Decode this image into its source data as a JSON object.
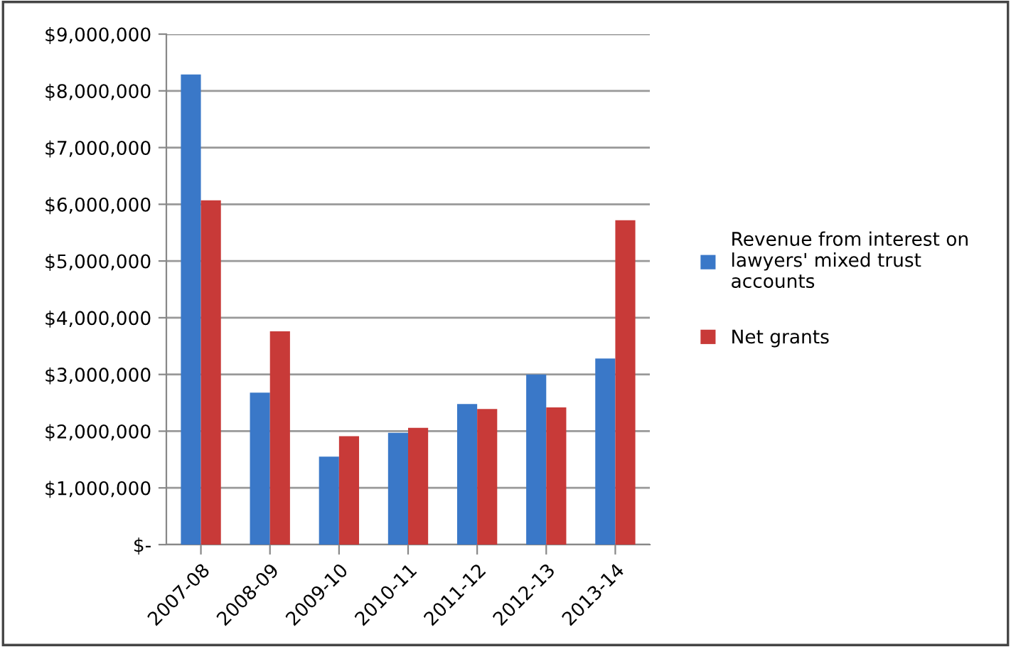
{
  "chart_data": {
    "type": "bar",
    "categories": [
      "2007-08",
      "2008-09",
      "2009-10",
      "2010-11",
      "2011-12",
      "2012-13",
      "2013-14"
    ],
    "series": [
      {
        "name": "Revenue from interest on\nlawyers' mixed trust\naccounts",
        "color": "#3a78c8",
        "values": [
          8290000,
          2680000,
          1550000,
          1970000,
          2480000,
          3000000,
          3280000
        ]
      },
      {
        "name": "Net grants",
        "color": "#c83a38",
        "values": [
          6070000,
          3760000,
          1910000,
          2060000,
          2390000,
          2420000,
          5720000
        ]
      }
    ],
    "ylim": [
      0,
      9000000
    ],
    "yticks": [
      {
        "value": 0,
        "label": "$-"
      },
      {
        "value": 1000000,
        "label": "$1,000,000"
      },
      {
        "value": 2000000,
        "label": "$2,000,000"
      },
      {
        "value": 3000000,
        "label": "$3,000,000"
      },
      {
        "value": 4000000,
        "label": "$4,000,000"
      },
      {
        "value": 5000000,
        "label": "$5,000,000"
      },
      {
        "value": 6000000,
        "label": "$6,000,000"
      },
      {
        "value": 7000000,
        "label": "$7,000,000"
      },
      {
        "value": 8000000,
        "label": "$8,000,000"
      },
      {
        "value": 9000000,
        "label": "$9,000,000"
      }
    ],
    "grid": "y",
    "legend": "right"
  }
}
